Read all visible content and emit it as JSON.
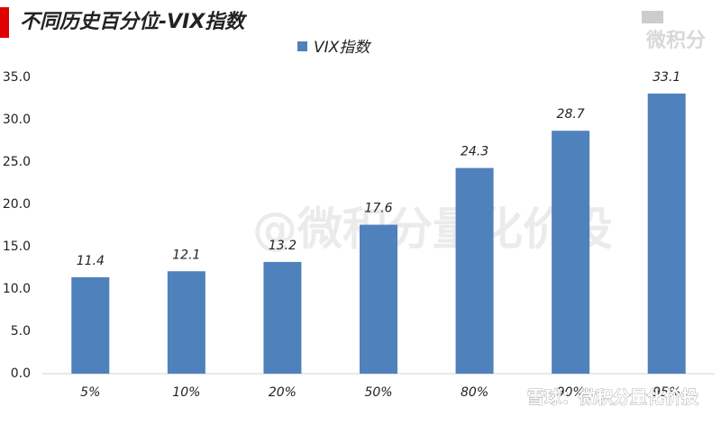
{
  "chart_data": {
    "type": "bar",
    "title": "不同历史百分位-VIX指数",
    "categories": [
      "5%",
      "10%",
      "20%",
      "50%",
      "80%",
      "90%",
      "95%"
    ],
    "series": [
      {
        "name": "VIX指数",
        "color": "#4f81bd",
        "values": [
          11.4,
          12.1,
          13.2,
          17.6,
          24.3,
          28.7,
          33.1
        ]
      }
    ],
    "ylim": [
      0,
      35
    ],
    "yticks": [
      {
        "value": 0,
        "label": "0.0"
      },
      {
        "value": 5,
        "label": "5.0"
      },
      {
        "value": 10,
        "label": "10.0"
      },
      {
        "value": 15,
        "label": "15.0"
      },
      {
        "value": 20,
        "label": "20.0"
      },
      {
        "value": 25,
        "label": "25.0"
      },
      {
        "value": 30,
        "label": "30.0"
      },
      {
        "value": 35,
        "label": "35.0"
      }
    ],
    "grid": false,
    "legend": "top",
    "logo": "微积分",
    "watermark": "@微积分量化价投",
    "footer_watermark": "雪球：微积分量化价投"
  }
}
